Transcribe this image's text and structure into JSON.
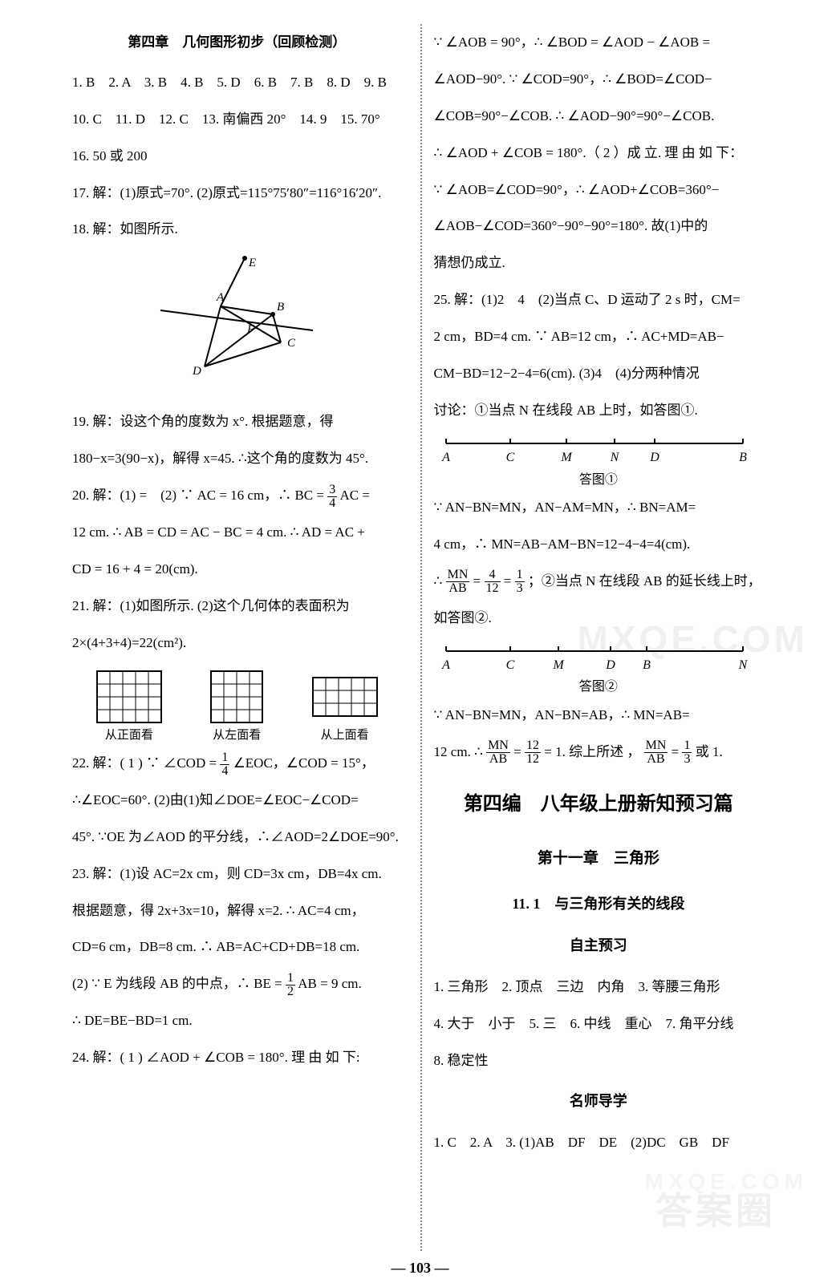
{
  "pageNumber": "103",
  "watermarks": {
    "w1": "MXQE.COM",
    "w2": "答案圈",
    "w3": "MXQE.COM"
  },
  "left": {
    "chapterTitle": "第四章　几何图形初步（回顾检测）",
    "mcAnswers": "1. B　2. A　3. B　4. B　5. D　6. B　7. B　8. D　9. B",
    "mcAnswers2": "10. C　11. D　12. C　13. 南偏西 20°　14. 9　15. 70°",
    "mcAnswers3": "16. 50 或 200",
    "q17": "17. 解：(1)原式=70°. (2)原式=115°75′80″=116°16′20″.",
    "q18": "18. 解：如图所示.",
    "q19": "19. 解：设这个角的度数为 x°. 根据题意，得 180−x=3(90−x)，解得 x=45. ∴这个角的度数为 45°.",
    "q20a": "20. 解：(1) =　(2) ∵ AC = 16 cm，∴ BC = ",
    "q20frac": {
      "n": "3",
      "d": "4"
    },
    "q20b": " AC =",
    "q20c": "12 cm. ∴ AB = CD = AC − BC = 4 cm. ∴ AD = AC +",
    "q20d": "CD = 16 + 4 = 20(cm).",
    "q21": "21. 解：(1)如图所示. (2)这个几何体的表面积为 2×(4+3+4)=22(cm²).",
    "viewLabels": {
      "front": "从正面看",
      "left": "从左面看",
      "top": "从上面看"
    },
    "q22a": "22. 解：( 1 ) ∵ ∠COD = ",
    "q22frac": {
      "n": "1",
      "d": "4"
    },
    "q22b": "∠EOC，∠COD = 15°，",
    "q22c": "∴∠EOC=60°. (2)由(1)知∠DOE=∠EOC−∠COD=",
    "q22d": "45°. ∵OE 为∠AOD 的平分线，∴∠AOD=2∠DOE=90°.",
    "q23a": "23. 解：(1)设 AC=2x cm，则 CD=3x cm，DB=4x cm.",
    "q23b": "根据题意，得 2x+3x=10，解得 x=2. ∴ AC=4 cm，",
    "q23c": "CD=6 cm，DB=8 cm. ∴ AB=AC+CD+DB=18 cm.",
    "q23d_a": "(2) ∵ E 为线段 AB 的中点，∴ BE = ",
    "q23frac": {
      "n": "1",
      "d": "2"
    },
    "q23d_b": " AB = 9 cm.",
    "q23e": "∴ DE=BE−BD=1 cm.",
    "q24": "24. 解：( 1 ) ∠AOD + ∠COB = 180°. 理 由 如 下:"
  },
  "right": {
    "p24a": "∵ ∠AOB = 90°，∴ ∠BOD = ∠AOD − ∠AOB =",
    "p24b": "∠AOD−90°. ∵ ∠COD=90°，∴ ∠BOD=∠COD−",
    "p24c": "∠COB=90°−∠COB. ∴ ∠AOD−90°=90°−∠COB.",
    "p24d": "∴ ∠AOD + ∠COB = 180°.（ 2 ）成 立. 理 由 如 下：",
    "p24e": "∵ ∠AOB=∠COD=90°，∴ ∠AOD+∠COB=360°−",
    "p24f": "∠AOB−∠COD=360°−90°−90°=180°. 故(1)中的",
    "p24g": "猜想仍成立.",
    "q25a": "25. 解：(1)2　4　(2)当点 C、D 运动了 2 s 时，CM=",
    "q25b": "2 cm，BD=4 cm. ∵ AB=12 cm，∴ AC+MD=AB−",
    "q25c": "CM−BD=12−2−4=6(cm). (3)4　(4)分两种情况",
    "q25d": "讨论：①当点 N 在线段 AB 上时，如答图①.",
    "line1": {
      "labels": [
        "A",
        "C",
        "M",
        "N",
        "D",
        "B"
      ],
      "caption": "答图①"
    },
    "q25e": "∵ AN−BN=MN，AN−AM=MN，∴ BN=AM=",
    "q25f": "4 cm，∴ MN=AB−AM−BN=12−4−4=4(cm).",
    "q25g_a": "∴ ",
    "q25frac1": {
      "n": "MN",
      "d": "AB"
    },
    "q25g_b": " = ",
    "q25frac2": {
      "n": "4",
      "d": "12"
    },
    "q25g_c": " = ",
    "q25frac3": {
      "n": "1",
      "d": "3"
    },
    "q25g_d": "；②当点 N 在线段 AB 的延长线上时，",
    "q25h": "如答图②.",
    "line2": {
      "labels": [
        "A",
        "C",
        "M",
        "D",
        "B",
        "N"
      ],
      "caption": "答图②"
    },
    "q25i": "∵ AN−BN=MN，AN−BN=AB，∴ MN=AB=",
    "q25j_a": "12 cm. ∴ ",
    "q25frac4": {
      "n": "MN",
      "d": "AB"
    },
    "q25j_b": " = ",
    "q25frac5": {
      "n": "12",
      "d": "12"
    },
    "q25j_c": " = 1. 综上所述 ，",
    "q25frac6": {
      "n": "MN",
      "d": "AB"
    },
    "q25j_d": " = ",
    "q25frac7": {
      "n": "1",
      "d": "3"
    },
    "q25j_e": " 或 1.",
    "bigTitle": "第四编　八年级上册新知预习篇",
    "ch11": "第十一章　三角形",
    "sec111": "11. 1　与三角形有关的线段",
    "zizhu": "自主预习",
    "zz1": "1. 三角形　2. 顶点　三边　内角　3. 等腰三角形",
    "zz2": "4. 大于　小于　5. 三　6. 中线　重心　7. 角平分线",
    "zz3": "8. 稳定性",
    "mingshi": "名师导学",
    "ms1": "1. C　2. A　3. (1)AB　DF　DE　(2)DC　GB　DF"
  },
  "numline1Positions": [
    10,
    90,
    160,
    220,
    270,
    380
  ],
  "numline2Positions": [
    10,
    90,
    150,
    215,
    260,
    380
  ],
  "colors": {
    "text": "#000000",
    "bg": "#ffffff",
    "divider": "#888888"
  }
}
